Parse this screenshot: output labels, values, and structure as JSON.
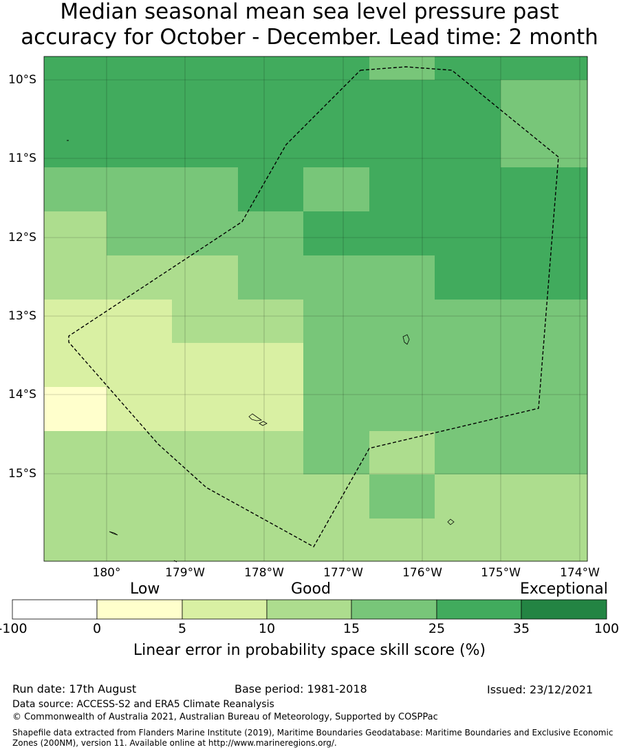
{
  "title": {
    "line1": "Median seasonal mean sea level pressure past",
    "line2": "accuracy for October - December. Lead time: 2 month"
  },
  "map": {
    "lat_labels": [
      "10°S",
      "11°S",
      "12°S",
      "13°S",
      "14°S",
      "15°S"
    ],
    "lon_labels": [
      "180°",
      "179°W",
      "178°W",
      "177°W",
      "176°W",
      "175°W",
      "174°W"
    ],
    "colors": {
      "c0": "#ffffff",
      "c1": "#ffffcc",
      "c2": "#d9f0a3",
      "c3": "#addd8e",
      "c4": "#78c679",
      "c5": "#41ab5d",
      "c6": "#238443"
    },
    "grid_rows": [
      [
        "c5",
        "c5",
        "c5",
        "c5",
        "c5",
        "c4",
        "c5",
        "c5"
      ],
      [
        "c5",
        "c5",
        "c5",
        "c5",
        "c5",
        "c5",
        "c5",
        "c4"
      ],
      [
        "c4",
        "c4",
        "c4",
        "c5",
        "c4",
        "c5",
        "c5",
        "c5"
      ],
      [
        "c3",
        "c4",
        "c4",
        "c4",
        "c5",
        "c5",
        "c5",
        "c5"
      ],
      [
        "c3",
        "c3",
        "c3",
        "c4",
        "c4",
        "c4",
        "c5",
        "c5"
      ],
      [
        "c2",
        "c2",
        "c3",
        "c3",
        "c4",
        "c4",
        "c4",
        "c4"
      ],
      [
        "c2",
        "c2",
        "c2",
        "c2",
        "c4",
        "c4",
        "c4",
        "c4"
      ],
      [
        "c1",
        "c2",
        "c2",
        "c2",
        "c4",
        "c4",
        "c4",
        "c4"
      ],
      [
        "c3",
        "c3",
        "c3",
        "c3",
        "c4",
        "c3",
        "c4",
        "c4"
      ],
      [
        "c3",
        "c3",
        "c3",
        "c3",
        "c3",
        "c4",
        "c3",
        "c3"
      ],
      [
        "c3",
        "c3",
        "c3",
        "c3",
        "c3",
        "c3",
        "c3",
        "c3"
      ]
    ]
  },
  "legend": {
    "categories": [
      "Low",
      "Good",
      "Exceptional"
    ],
    "ticks": [
      "-100",
      "0",
      "5",
      "10",
      "15",
      "25",
      "35",
      "100"
    ],
    "colors": [
      "#ffffff",
      "#ffffcc",
      "#d9f0a3",
      "#addd8e",
      "#78c679",
      "#41ab5d",
      "#238443"
    ],
    "label": "Linear error in probability space skill score (%)"
  },
  "footer": {
    "run_date": "Run date: 17th August",
    "base_period": "Base period: 1981-2018",
    "issued": "Issued: 23/12/2021",
    "data_source": "Data source: ACCESS-S2 and ERA5 Climate Reanalysis",
    "copyright": "© Commonwealth of Australia 2021, Australian Bureau of Meteorology, Supported by COSPPac",
    "shapefile": "Shapefile data extracted from Flanders Marine Institute (2019), Maritime Boundaries Geodatabase: Maritime Boundaries and Exclusive Economic Zones (200NM), version 11. Available online at http://www.marineregions.org/."
  }
}
